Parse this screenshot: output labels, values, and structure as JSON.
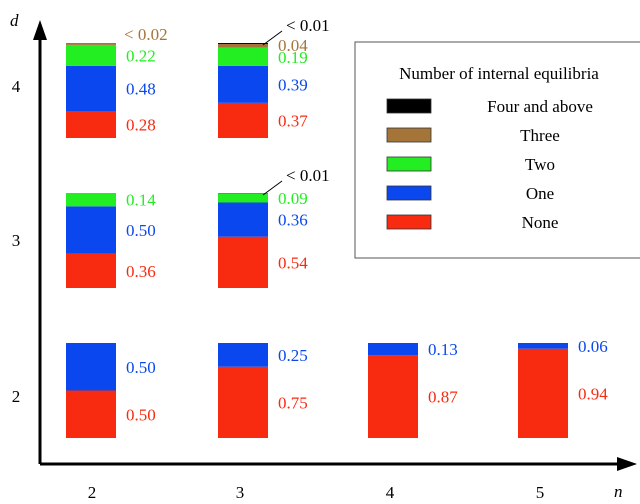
{
  "chart_data": {
    "type": "bar",
    "stacked": true,
    "xlabel": "n",
    "ylabel": "d",
    "x_ticks": [
      "2",
      "3",
      "4",
      "5"
    ],
    "y_ticks": [
      "2",
      "3",
      "4"
    ],
    "legend": {
      "title": "Number of internal equilibria",
      "placement": "top-right",
      "items": [
        {
          "label": "Four and above",
          "color": "#000000"
        },
        {
          "label": "Three",
          "color": "#a57438"
        },
        {
          "label": "Two",
          "color": "#22ee22"
        },
        {
          "label": "One",
          "color": "#0a47ee"
        },
        {
          "label": "None",
          "color": "#f82a10"
        }
      ]
    },
    "cells": [
      {
        "n": 2,
        "d": 4,
        "segments": [
          {
            "category": "None",
            "value": 0.28,
            "label": "0.28"
          },
          {
            "category": "One",
            "value": 0.48,
            "label": "0.48"
          },
          {
            "category": "Two",
            "value": 0.22,
            "label": "0.22"
          },
          {
            "category": "Three",
            "value": 0.02,
            "label": "< 0.02"
          }
        ]
      },
      {
        "n": 3,
        "d": 4,
        "segments": [
          {
            "category": "None",
            "value": 0.37,
            "label": "0.37"
          },
          {
            "category": "One",
            "value": 0.39,
            "label": "0.39"
          },
          {
            "category": "Two",
            "value": 0.19,
            "label": "0.19"
          },
          {
            "category": "Three",
            "value": 0.04,
            "label": "0.04"
          },
          {
            "category": "Four and above",
            "value": 0.01,
            "label": "< 0.01"
          }
        ]
      },
      {
        "n": 2,
        "d": 3,
        "segments": [
          {
            "category": "None",
            "value": 0.36,
            "label": "0.36"
          },
          {
            "category": "One",
            "value": 0.5,
            "label": "0.50"
          },
          {
            "category": "Two",
            "value": 0.14,
            "label": "0.14"
          }
        ]
      },
      {
        "n": 3,
        "d": 3,
        "segments": [
          {
            "category": "None",
            "value": 0.54,
            "label": "0.54"
          },
          {
            "category": "One",
            "value": 0.36,
            "label": "0.36"
          },
          {
            "category": "Two",
            "value": 0.09,
            "label": "0.09"
          },
          {
            "category": "Three",
            "value": 0.01,
            "label": "< 0.01"
          }
        ]
      },
      {
        "n": 2,
        "d": 2,
        "segments": [
          {
            "category": "None",
            "value": 0.5,
            "label": "0.50"
          },
          {
            "category": "One",
            "value": 0.5,
            "label": "0.50"
          }
        ]
      },
      {
        "n": 3,
        "d": 2,
        "segments": [
          {
            "category": "None",
            "value": 0.75,
            "label": "0.75"
          },
          {
            "category": "One",
            "value": 0.25,
            "label": "0.25"
          }
        ]
      },
      {
        "n": 4,
        "d": 2,
        "segments": [
          {
            "category": "None",
            "value": 0.87,
            "label": "0.87"
          },
          {
            "category": "One",
            "value": 0.13,
            "label": "0.13"
          }
        ]
      },
      {
        "n": 5,
        "d": 2,
        "segments": [
          {
            "category": "None",
            "value": 0.94,
            "label": "0.94"
          },
          {
            "category": "One",
            "value": 0.06,
            "label": "0.06"
          }
        ]
      }
    ]
  }
}
